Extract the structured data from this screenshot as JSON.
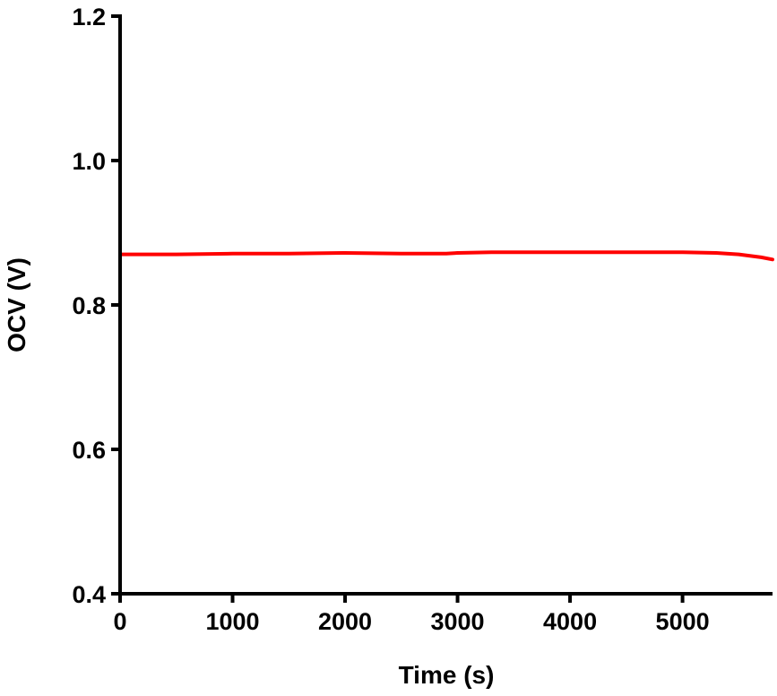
{
  "chart_data": {
    "type": "line",
    "title": "",
    "xlabel": "Time (s)",
    "ylabel": "OCV (V)",
    "xlim": [
      0,
      5800
    ],
    "ylim": [
      0.4,
      1.2
    ],
    "x_ticks": [
      0,
      1000,
      2000,
      3000,
      4000,
      5000
    ],
    "x_tick_labels": [
      "0",
      "1000",
      "2000",
      "3000",
      "4000",
      "5000"
    ],
    "y_ticks": [
      0.4,
      0.6,
      0.8,
      1.0,
      1.2
    ],
    "y_tick_labels": [
      "0.4",
      "0.6",
      "0.8",
      "1.0",
      "1.2"
    ],
    "grid": false,
    "series": [
      {
        "color": "#ff0000",
        "x": [
          0,
          500,
          1000,
          1500,
          2000,
          2500,
          2900,
          3000,
          3300,
          3500,
          4000,
          4500,
          5000,
          5300,
          5500,
          5700,
          5800
        ],
        "y": [
          0.87,
          0.87,
          0.871,
          0.871,
          0.872,
          0.871,
          0.871,
          0.872,
          0.873,
          0.873,
          0.873,
          0.873,
          0.873,
          0.872,
          0.87,
          0.866,
          0.863
        ]
      }
    ]
  }
}
